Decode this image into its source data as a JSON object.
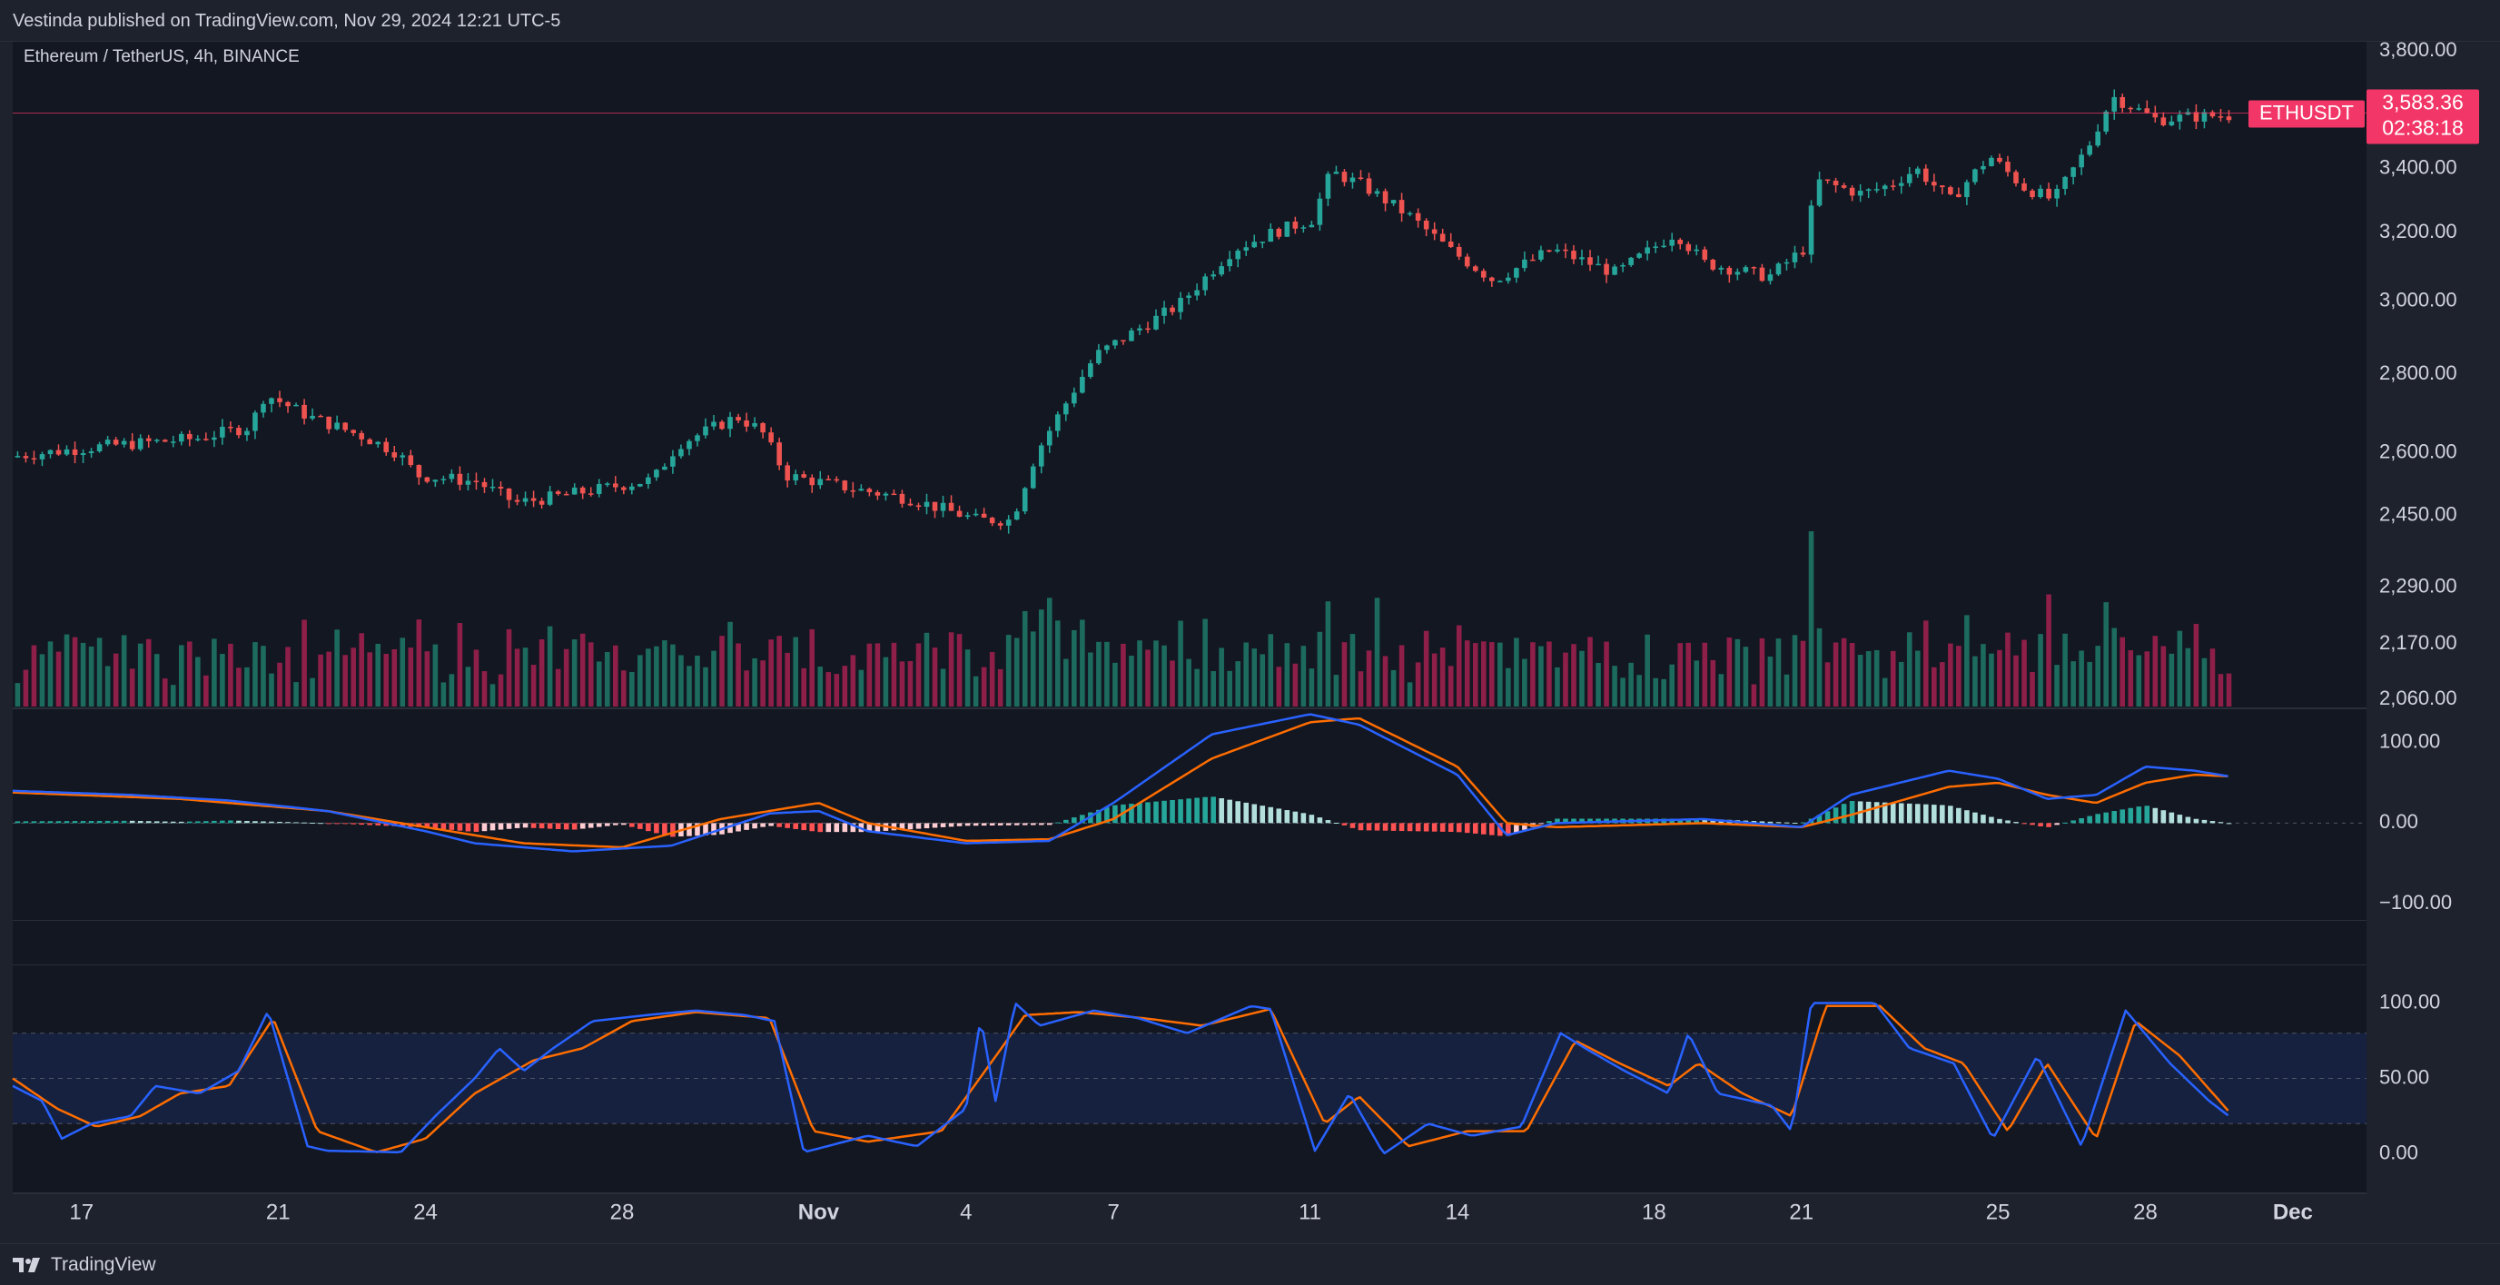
{
  "header": {
    "published": "Vestinda published on TradingView.com, Nov 29, 2024 12:21 UTC-5"
  },
  "footer": {
    "brand": "TradingView",
    "logo_icon": "tradingview-logo-icon"
  },
  "symbol": {
    "label": "Ethereum / TetherUS, 4h, BINANCE",
    "ticker": "ETHUSDT",
    "last_price": "3,583.36",
    "countdown": "02:38:18"
  },
  "colors": {
    "up": "#26a69a",
    "down": "#ef5350",
    "up_dim": "#1c6b5e",
    "down_dim": "#8e1f48",
    "macd": "#2962ff",
    "signal": "#ff6d00",
    "stoch_k": "#2962ff",
    "stoch_d": "#ff6d00",
    "price_badge": "#f23667"
  },
  "chart_data": [
    {
      "type": "candlestick",
      "title": "Ethereum / TetherUS, 4h, BINANCE",
      "y_ticks": [
        "3,800.00",
        "3,400.00",
        "3,200.00",
        "3,000.00",
        "2,800.00",
        "2,600.00",
        "2,450.00",
        "2,290.00",
        "2,170.00",
        "2,060.00"
      ],
      "y_tick_values": [
        3800,
        3400,
        3200,
        3000,
        2800,
        2600,
        2450,
        2290,
        2170,
        2060
      ],
      "x_ticks": [
        "17",
        "21",
        "24",
        "28",
        "Nov",
        "4",
        "7",
        "11",
        "14",
        "18",
        "21",
        "25",
        "28",
        "Dec"
      ],
      "x_tick_days": [
        17,
        21,
        24,
        28,
        32,
        35,
        38,
        42,
        45,
        49,
        52,
        56,
        59,
        62
      ],
      "x_domain_days": [
        15.6,
        63.5
      ],
      "scale": "log",
      "ylim": [
        2060,
        3800
      ],
      "last_price": 3583.36,
      "anchors": [
        {
          "day": 15.7,
          "price": 2590
        },
        {
          "day": 17.5,
          "price": 2615
        },
        {
          "day": 19.5,
          "price": 2635
        },
        {
          "day": 20.6,
          "price": 2665
        },
        {
          "day": 20.9,
          "price": 2748
        },
        {
          "day": 21.8,
          "price": 2690
        },
        {
          "day": 22.9,
          "price": 2640
        },
        {
          "day": 23.6,
          "price": 2600
        },
        {
          "day": 24.0,
          "price": 2545
        },
        {
          "day": 25.2,
          "price": 2530
        },
        {
          "day": 26.0,
          "price": 2480
        },
        {
          "day": 26.6,
          "price": 2490
        },
        {
          "day": 27.6,
          "price": 2510
        },
        {
          "day": 28.8,
          "price": 2535
        },
        {
          "day": 29.3,
          "price": 2620
        },
        {
          "day": 30.5,
          "price": 2690
        },
        {
          "day": 31.0,
          "price": 2655
        },
        {
          "day": 31.5,
          "price": 2545
        },
        {
          "day": 33.0,
          "price": 2510
        },
        {
          "day": 34.0,
          "price": 2490
        },
        {
          "day": 35.4,
          "price": 2440
        },
        {
          "day": 36.1,
          "price": 2440
        },
        {
          "day": 36.6,
          "price": 2600
        },
        {
          "day": 37.8,
          "price": 2850
        },
        {
          "day": 39.5,
          "price": 2990
        },
        {
          "day": 40.6,
          "price": 3150
        },
        {
          "day": 41.4,
          "price": 3200
        },
        {
          "day": 42.2,
          "price": 3240
        },
        {
          "day": 42.6,
          "price": 3390
        },
        {
          "day": 43.2,
          "price": 3350
        },
        {
          "day": 44.2,
          "price": 3250
        },
        {
          "day": 45.0,
          "price": 3150
        },
        {
          "day": 45.9,
          "price": 3060
        },
        {
          "day": 47.1,
          "price": 3150
        },
        {
          "day": 48.4,
          "price": 3080
        },
        {
          "day": 49.6,
          "price": 3200
        },
        {
          "day": 50.2,
          "price": 3110
        },
        {
          "day": 51.5,
          "price": 3070
        },
        {
          "day": 52.2,
          "price": 3150
        },
        {
          "day": 52.5,
          "price": 3360
        },
        {
          "day": 53.4,
          "price": 3320
        },
        {
          "day": 54.0,
          "price": 3350
        },
        {
          "day": 54.5,
          "price": 3400
        },
        {
          "day": 55.2,
          "price": 3300
        },
        {
          "day": 56.0,
          "price": 3440
        },
        {
          "day": 56.7,
          "price": 3340
        },
        {
          "day": 57.3,
          "price": 3300
        },
        {
          "day": 58.0,
          "price": 3470
        },
        {
          "day": 58.5,
          "price": 3640
        },
        {
          "day": 59.4,
          "price": 3560
        },
        {
          "day": 60.0,
          "price": 3570
        },
        {
          "day": 60.7,
          "price": 3575
        }
      ]
    },
    {
      "type": "bar",
      "title": "",
      "note_volume_scale": "relative 0-1",
      "spikes": [
        {
          "day": 52.2,
          "rel": 1.0
        },
        {
          "day": 36.7,
          "rel": 0.62
        },
        {
          "day": 57.0,
          "rel": 0.64
        },
        {
          "day": 43.3,
          "rel": 0.62
        },
        {
          "day": 42.4,
          "rel": 0.6
        }
      ]
    },
    {
      "type": "line",
      "title": "",
      "y_ticks": [
        "100.00",
        "0.00",
        "−100.00"
      ],
      "y_tick_values": [
        100,
        0,
        -100
      ],
      "ylim": [
        -120,
        140
      ],
      "series": [
        {
          "name": "macd",
          "points": [
            [
              15.6,
              40
            ],
            [
              18,
              35
            ],
            [
              20,
              28
            ],
            [
              22,
              15
            ],
            [
              24,
              -10
            ],
            [
              25,
              -25
            ],
            [
              27,
              -35
            ],
            [
              29,
              -28
            ],
            [
              31,
              12
            ],
            [
              32,
              15
            ],
            [
              33,
              -10
            ],
            [
              35,
              -25
            ],
            [
              36.7,
              -22
            ],
            [
              38,
              25
            ],
            [
              40,
              110
            ],
            [
              42,
              135
            ],
            [
              43,
              122
            ],
            [
              45,
              60
            ],
            [
              46,
              -15
            ],
            [
              47,
              0
            ],
            [
              50,
              5
            ],
            [
              52,
              -5
            ],
            [
              53,
              35
            ],
            [
              55,
              65
            ],
            [
              56,
              55
            ],
            [
              57,
              30
            ],
            [
              58,
              35
            ],
            [
              59,
              70
            ],
            [
              60,
              65
            ],
            [
              60.7,
              58
            ]
          ]
        },
        {
          "name": "signal",
          "points": [
            [
              15.6,
              38
            ],
            [
              19,
              30
            ],
            [
              22,
              15
            ],
            [
              24,
              -5
            ],
            [
              26,
              -25
            ],
            [
              28,
              -30
            ],
            [
              30,
              5
            ],
            [
              32,
              25
            ],
            [
              33,
              0
            ],
            [
              35,
              -22
            ],
            [
              36.7,
              -20
            ],
            [
              38,
              5
            ],
            [
              40,
              80
            ],
            [
              42,
              125
            ],
            [
              43,
              130
            ],
            [
              45,
              70
            ],
            [
              46,
              0
            ],
            [
              47,
              -5
            ],
            [
              50,
              0
            ],
            [
              52,
              -5
            ],
            [
              53,
              10
            ],
            [
              55,
              45
            ],
            [
              56,
              50
            ],
            [
              57,
              35
            ],
            [
              58,
              25
            ],
            [
              59,
              50
            ],
            [
              60,
              60
            ],
            [
              60.7,
              58
            ]
          ]
        }
      ]
    },
    {
      "type": "line",
      "title": "",
      "y_ticks": [
        "100.00",
        "50.00",
        "0.00"
      ],
      "y_tick_values": [
        100,
        50,
        0
      ],
      "ylim": [
        -25,
        125
      ],
      "band": [
        20,
        80
      ],
      "series": [
        {
          "name": "stoch_k",
          "points": [
            [
              15.6,
              45
            ],
            [
              16.2,
              35
            ],
            [
              16.6,
              10
            ],
            [
              17.2,
              20
            ],
            [
              18,
              25
            ],
            [
              18.5,
              45
            ],
            [
              19.4,
              40
            ],
            [
              20.2,
              55
            ],
            [
              20.8,
              95
            ],
            [
              21.6,
              5
            ],
            [
              22,
              2
            ],
            [
              23.5,
              1
            ],
            [
              24.2,
              25
            ],
            [
              25,
              50
            ],
            [
              25.5,
              70
            ],
            [
              26,
              55
            ],
            [
              26.6,
              70
            ],
            [
              27.4,
              88
            ],
            [
              28.5,
              92
            ],
            [
              29.5,
              95
            ],
            [
              30.5,
              92
            ],
            [
              31.1,
              88
            ],
            [
              31.7,
              1
            ],
            [
              33,
              12
            ],
            [
              34,
              5
            ],
            [
              35,
              30
            ],
            [
              35.3,
              90
            ],
            [
              35.6,
              35
            ],
            [
              36,
              100
            ],
            [
              36.5,
              85
            ],
            [
              37.6,
              95
            ],
            [
              38.5,
              90
            ],
            [
              39.5,
              80
            ],
            [
              40.8,
              98
            ],
            [
              41.2,
              96
            ],
            [
              42.1,
              2
            ],
            [
              42.8,
              40
            ],
            [
              43.5,
              0
            ],
            [
              44.4,
              20
            ],
            [
              45.3,
              12
            ],
            [
              46.3,
              18
            ],
            [
              47.1,
              80
            ],
            [
              47.6,
              70
            ],
            [
              48.4,
              55
            ],
            [
              49.3,
              40
            ],
            [
              49.7,
              80
            ],
            [
              50.3,
              40
            ],
            [
              51.4,
              32
            ],
            [
              51.8,
              15
            ],
            [
              52.2,
              100
            ],
            [
              53.5,
              100
            ],
            [
              54.2,
              70
            ],
            [
              55.1,
              60
            ],
            [
              55.9,
              10
            ],
            [
              56.8,
              65
            ],
            [
              57.7,
              5
            ],
            [
              58.6,
              95
            ],
            [
              59.5,
              60
            ],
            [
              60.3,
              35
            ],
            [
              60.7,
              25
            ]
          ]
        },
        {
          "name": "stoch_d",
          "points": [
            [
              15.6,
              50
            ],
            [
              16.5,
              30
            ],
            [
              17.3,
              18
            ],
            [
              18.2,
              25
            ],
            [
              19,
              40
            ],
            [
              20,
              45
            ],
            [
              20.9,
              90
            ],
            [
              21.8,
              15
            ],
            [
              23,
              1
            ],
            [
              24,
              10
            ],
            [
              25,
              40
            ],
            [
              26.2,
              62
            ],
            [
              27.2,
              70
            ],
            [
              28.2,
              88
            ],
            [
              29.5,
              94
            ],
            [
              31,
              90
            ],
            [
              31.9,
              15
            ],
            [
              33,
              8
            ],
            [
              34.5,
              15
            ],
            [
              35.5,
              60
            ],
            [
              36.2,
              92
            ],
            [
              37.3,
              94
            ],
            [
              38.6,
              90
            ],
            [
              39.8,
              85
            ],
            [
              41.2,
              96
            ],
            [
              42.3,
              20
            ],
            [
              43,
              38
            ],
            [
              44,
              5
            ],
            [
              45.2,
              15
            ],
            [
              46.4,
              15
            ],
            [
              47.4,
              75
            ],
            [
              48.3,
              60
            ],
            [
              49.3,
              45
            ],
            [
              49.9,
              60
            ],
            [
              50.8,
              40
            ],
            [
              51.8,
              25
            ],
            [
              52.5,
              98
            ],
            [
              53.6,
              98
            ],
            [
              54.5,
              70
            ],
            [
              55.3,
              60
            ],
            [
              56.2,
              15
            ],
            [
              57.0,
              60
            ],
            [
              58,
              10
            ],
            [
              58.8,
              88
            ],
            [
              59.7,
              65
            ],
            [
              60.7,
              28
            ]
          ]
        }
      ]
    }
  ]
}
